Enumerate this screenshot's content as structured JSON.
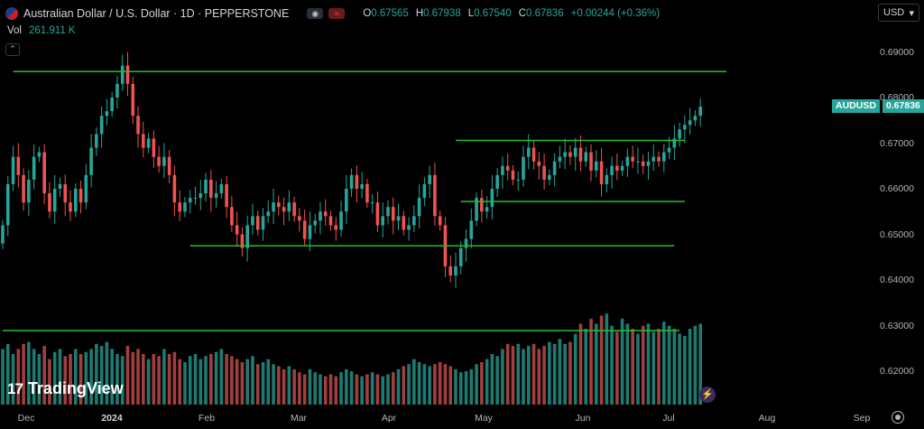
{
  "header": {
    "symbol_title": "Australian Dollar / U.S. Dollar · 1D · PEPPERSTONE",
    "ohlc": [
      {
        "k": "O",
        "v": "0.67565"
      },
      {
        "k": "H",
        "v": "0.67938"
      },
      {
        "k": "L",
        "v": "0.67540"
      },
      {
        "k": "C",
        "v": "0.67836"
      }
    ],
    "change": "+0.00244 (+0.36%)"
  },
  "volume": {
    "label": "Vol",
    "value": "261.911 K"
  },
  "currency": {
    "label": "USD"
  },
  "last_price": {
    "symbol": "AUDUSD",
    "value": "0.67836"
  },
  "y_axis": {
    "ticks": [
      "0.69000",
      "0.68000",
      "0.67000",
      "0.66000",
      "0.65000",
      "0.64000",
      "0.63000",
      "0.62000"
    ],
    "values": [
      0.69,
      0.68,
      0.67,
      0.66,
      0.65,
      0.64,
      0.63,
      0.62
    ]
  },
  "x_axis": {
    "ticks": [
      {
        "label": "Dec",
        "bold": false
      },
      {
        "label": "2024",
        "bold": true
      },
      {
        "label": "Feb",
        "bold": false
      },
      {
        "label": "Mar",
        "bold": false
      },
      {
        "label": "Apr",
        "bold": false
      },
      {
        "label": "May",
        "bold": false
      },
      {
        "label": "Jun",
        "bold": false
      },
      {
        "label": "Jul",
        "bold": false
      },
      {
        "label": "Aug",
        "bold": false
      },
      {
        "label": "Sep",
        "bold": false
      }
    ]
  },
  "brand": {
    "logo_text": "TradingView"
  },
  "colors": {
    "up": "#26a69a",
    "down": "#ef5350",
    "line": "#22c02e",
    "volume_up": "#1f7a72",
    "volume_down": "#a13f3f"
  },
  "chart_data": {
    "type": "candlestick",
    "title": "Australian Dollar / U.S. Dollar · 1D · PEPPERSTONE",
    "ylim": [
      0.615,
      0.6995
    ],
    "closes": [
      0.652,
      0.661,
      0.667,
      0.663,
      0.657,
      0.662,
      0.667,
      0.668,
      0.659,
      0.655,
      0.66,
      0.661,
      0.657,
      0.655,
      0.66,
      0.657,
      0.663,
      0.669,
      0.672,
      0.676,
      0.677,
      0.68,
      0.683,
      0.687,
      0.683,
      0.676,
      0.672,
      0.669,
      0.671,
      0.667,
      0.665,
      0.667,
      0.663,
      0.657,
      0.655,
      0.657,
      0.658,
      0.658,
      0.659,
      0.662,
      0.658,
      0.659,
      0.661,
      0.656,
      0.652,
      0.65,
      0.647,
      0.652,
      0.654,
      0.651,
      0.654,
      0.655,
      0.657,
      0.656,
      0.655,
      0.657,
      0.654,
      0.653,
      0.649,
      0.652,
      0.653,
      0.655,
      0.654,
      0.652,
      0.651,
      0.655,
      0.66,
      0.663,
      0.66,
      0.661,
      0.657,
      0.657,
      0.652,
      0.654,
      0.656,
      0.653,
      0.654,
      0.651,
      0.652,
      0.654,
      0.658,
      0.661,
      0.663,
      0.654,
      0.652,
      0.643,
      0.641,
      0.643,
      0.647,
      0.649,
      0.653,
      0.658,
      0.655,
      0.656,
      0.66,
      0.663,
      0.665,
      0.664,
      0.662,
      0.662,
      0.667,
      0.669,
      0.666,
      0.665,
      0.662,
      0.663,
      0.666,
      0.667,
      0.668,
      0.667,
      0.669,
      0.666,
      0.668,
      0.664,
      0.666,
      0.661,
      0.663,
      0.665,
      0.664,
      0.665,
      0.667,
      0.666,
      0.666,
      0.665,
      0.666,
      0.667,
      0.666,
      0.668,
      0.669,
      0.671,
      0.673,
      0.674,
      0.675,
      0.676,
      0.678
    ],
    "volume_levels": [
      0.55,
      0.6,
      0.5,
      0.55,
      0.6,
      0.62,
      0.55,
      0.5,
      0.58,
      0.45,
      0.52,
      0.55,
      0.48,
      0.5,
      0.55,
      0.5,
      0.52,
      0.55,
      0.6,
      0.58,
      0.62,
      0.55,
      0.5,
      0.48,
      0.58,
      0.52,
      0.55,
      0.5,
      0.45,
      0.5,
      0.48,
      0.55,
      0.5,
      0.52,
      0.45,
      0.42,
      0.48,
      0.5,
      0.45,
      0.48,
      0.5,
      0.52,
      0.55,
      0.5,
      0.48,
      0.45,
      0.42,
      0.45,
      0.48,
      0.4,
      0.42,
      0.45,
      0.4,
      0.38,
      0.35,
      0.38,
      0.35,
      0.32,
      0.3,
      0.35,
      0.32,
      0.3,
      0.28,
      0.3,
      0.28,
      0.32,
      0.35,
      0.33,
      0.3,
      0.28,
      0.3,
      0.32,
      0.3,
      0.28,
      0.3,
      0.32,
      0.35,
      0.38,
      0.4,
      0.45,
      0.42,
      0.4,
      0.38,
      0.4,
      0.42,
      0.4,
      0.38,
      0.35,
      0.32,
      0.33,
      0.35,
      0.4,
      0.42,
      0.45,
      0.5,
      0.48,
      0.55,
      0.6,
      0.58,
      0.6,
      0.55,
      0.58,
      0.6,
      0.55,
      0.58,
      0.62,
      0.6,
      0.65,
      0.6,
      0.62,
      0.7,
      0.8,
      0.75,
      0.85,
      0.8,
      0.88,
      0.9,
      0.78,
      0.72,
      0.85,
      0.8,
      0.75,
      0.7,
      0.78,
      0.8,
      0.72,
      0.75,
      0.82,
      0.78,
      0.75,
      0.7,
      0.68,
      0.75,
      0.78,
      0.8
    ],
    "horizontal_levels": [
      {
        "price": 0.6857,
        "from_index": 2,
        "to_index": 139
      },
      {
        "price": 0.6706,
        "from_index": 87,
        "to_index": 131
      },
      {
        "price": 0.6572,
        "from_index": 88,
        "to_index": 131
      },
      {
        "price": 0.6475,
        "from_index": 36,
        "to_index": 129
      },
      {
        "price": 0.6289,
        "from_index": 0,
        "to_index": 130
      }
    ]
  }
}
